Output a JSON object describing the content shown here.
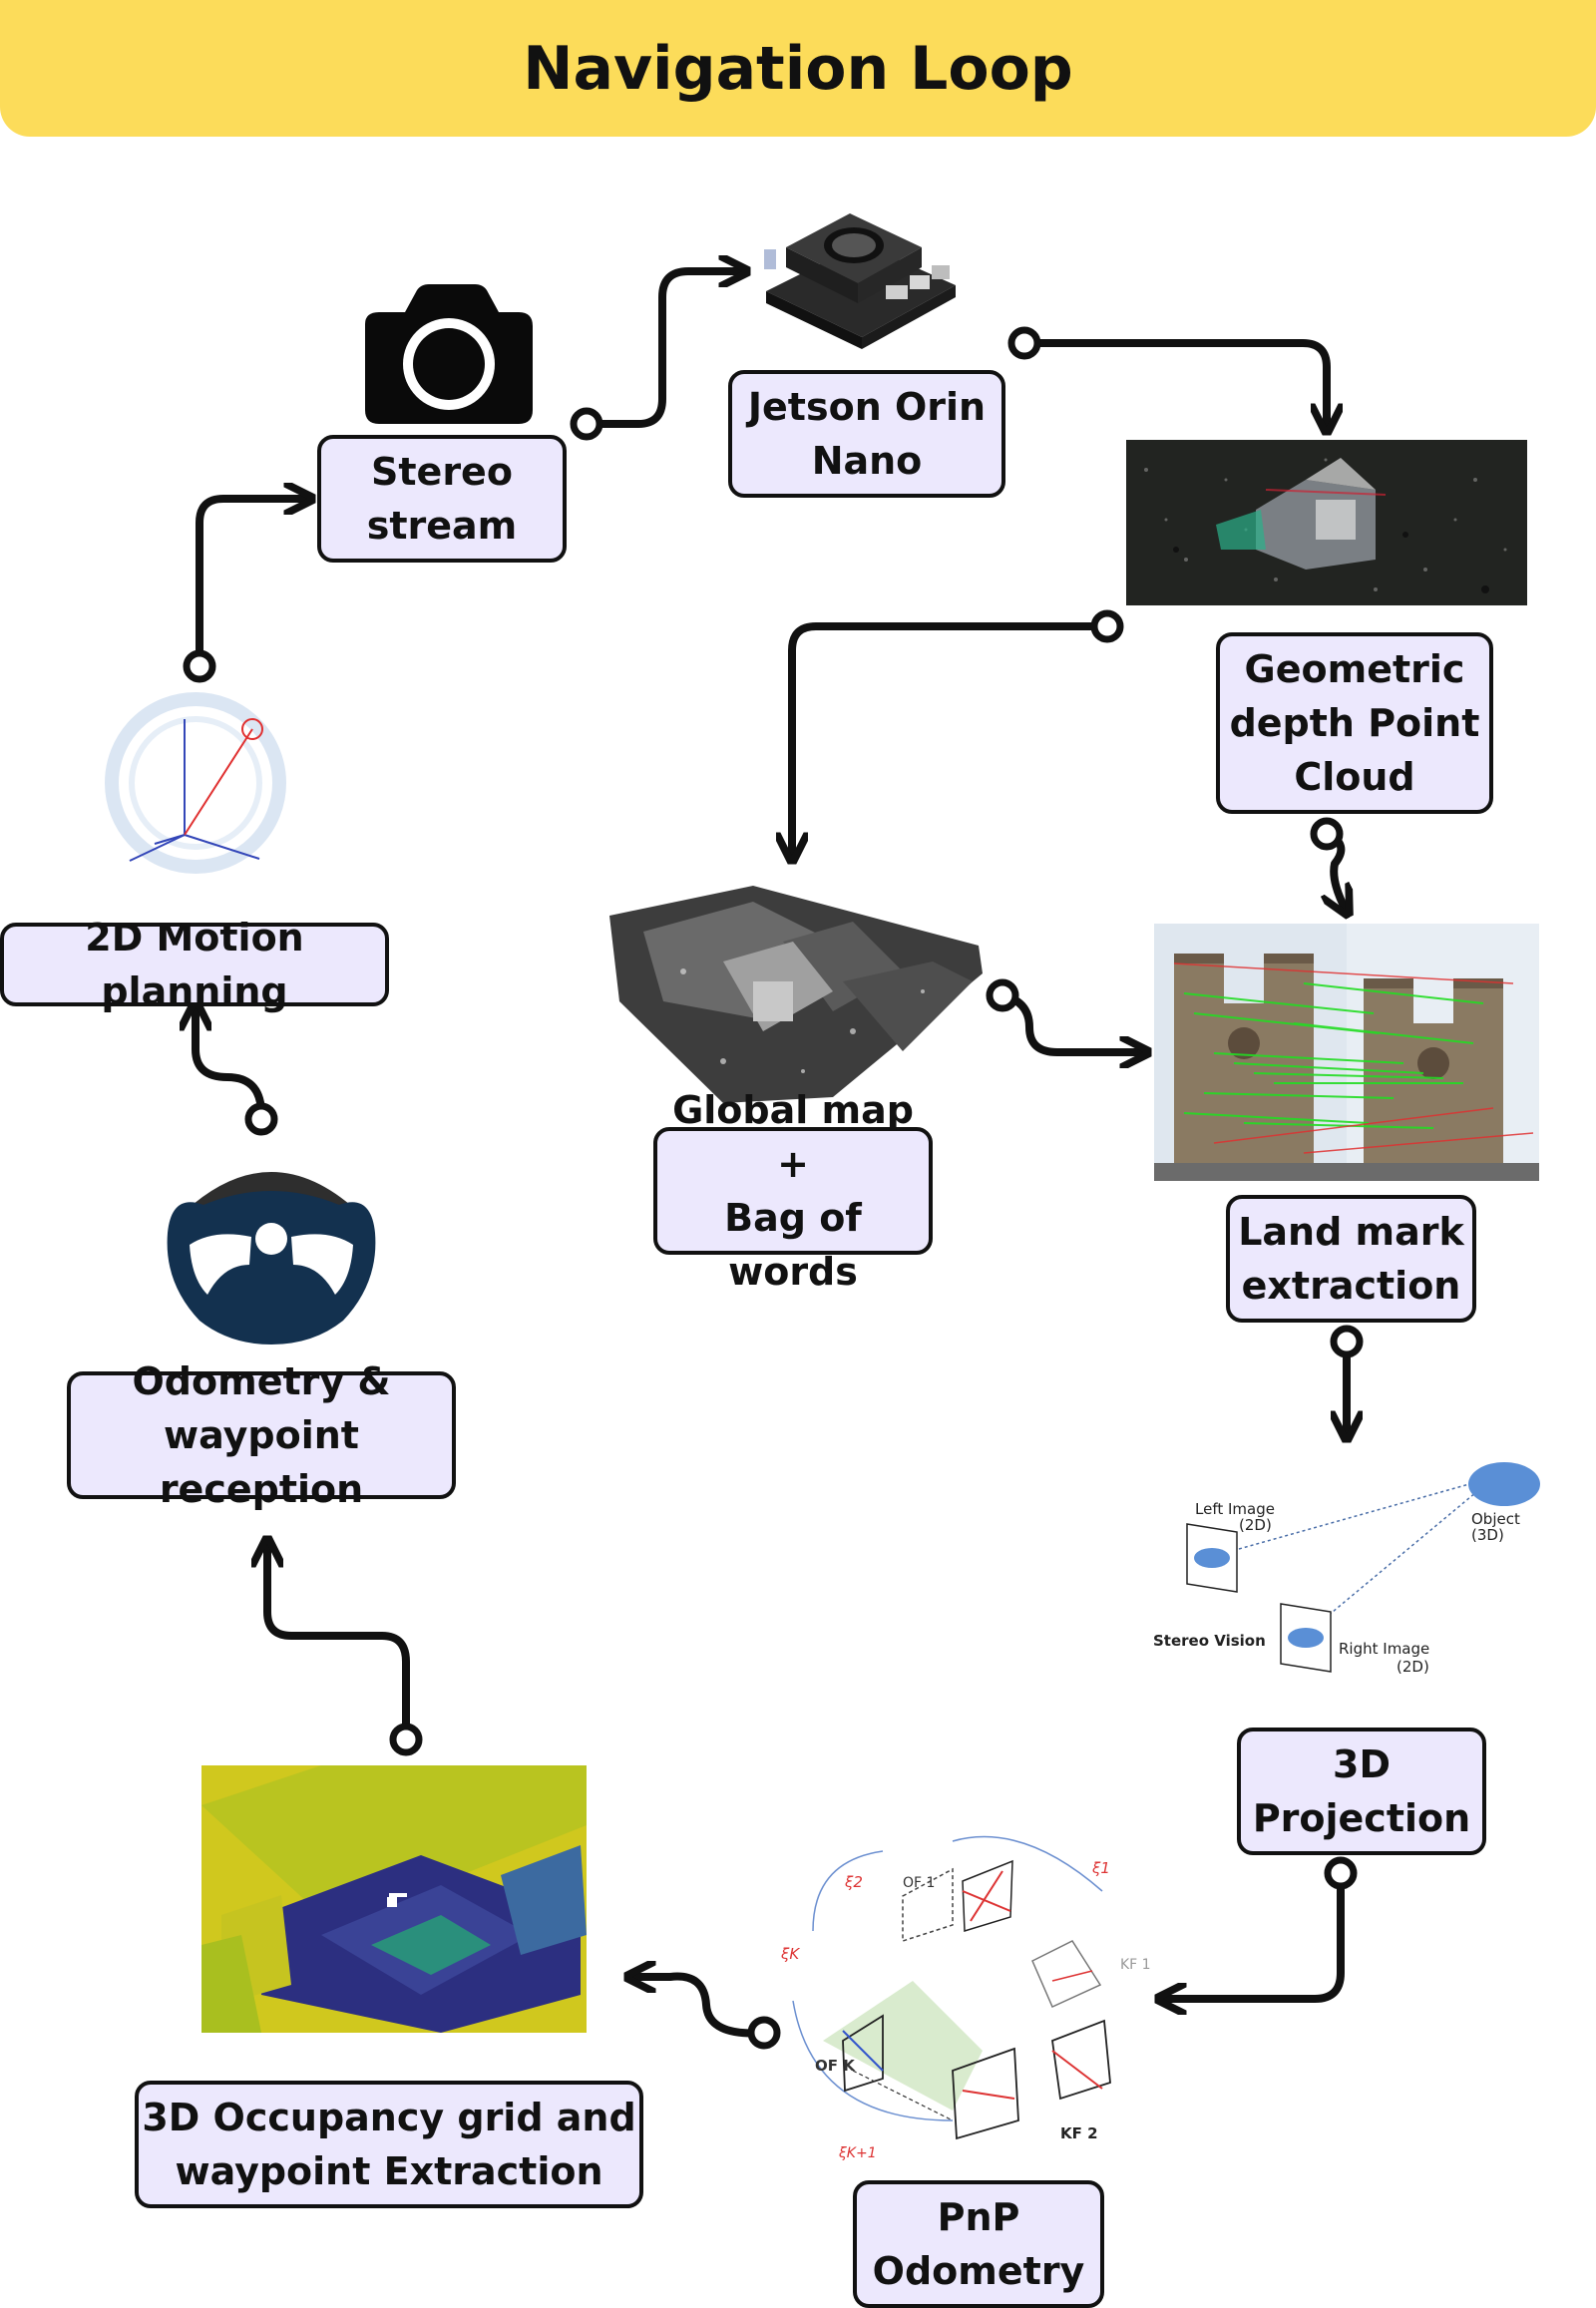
{
  "banner": {
    "title": "Navigation Loop",
    "color": "#fcdc5a"
  },
  "nodes": {
    "stereo": "Stereo\nstream",
    "jetson": "Jetson Orin\nNano",
    "depth": "Geometric\ndepth Point\nCloud",
    "landmark": "Land mark\nextraction",
    "projection": "3D\nProjection",
    "pnp": "PnP\nOdometry",
    "occupancy": "3D Occupancy grid and\nwaypoint Extraction",
    "odometry": "Odometry &\nwaypoint reception",
    "motion": "2D Motion planning",
    "globalmap": "Global map +\nBag of words"
  },
  "stereo_vision_figure": {
    "left": "Left Image",
    "left_dim": "(2D)",
    "object": "Object",
    "object_dim": "(3D)",
    "caption": "Stereo Vision",
    "right": "Right Image",
    "right_dim": "(2D)"
  },
  "pnp_figure": {
    "of1": "OF 1",
    "ofk": "OF K",
    "kf1": "KF 1",
    "kf2": "KF 2",
    "xi1": "ξ1",
    "xi2": "ξ2",
    "xik": "ξK",
    "xik1": "ξK+1"
  },
  "colors": {
    "node_fill": "#ece8fd",
    "steering": "#13314f",
    "arrow": "#111111"
  }
}
